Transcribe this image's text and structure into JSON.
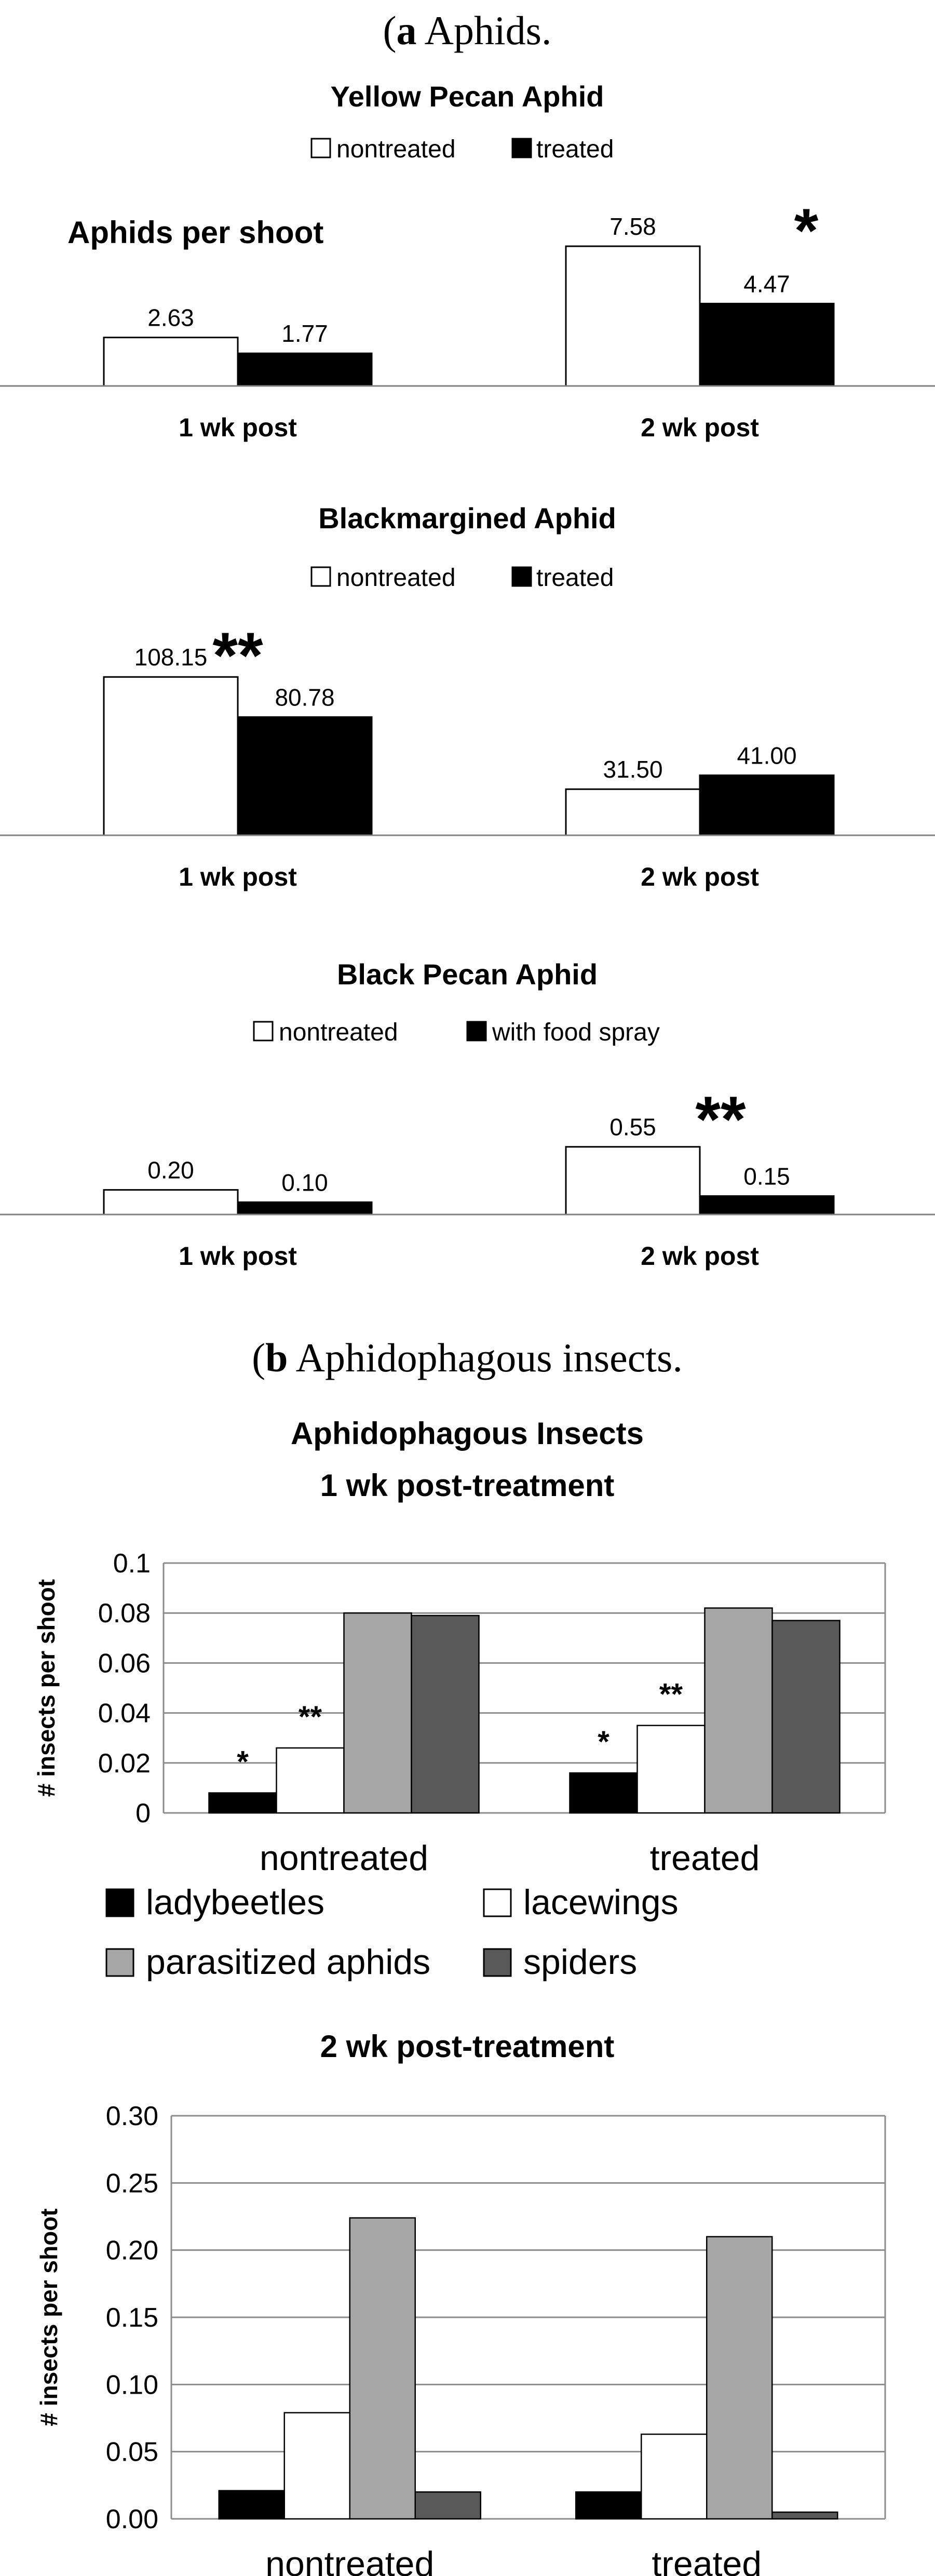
{
  "section_a": {
    "letter": "a",
    "text": " Aphids."
  },
  "section_b": {
    "letter": "b",
    "text": " Aphidophagous insects."
  },
  "chart_data": [
    {
      "id": "yellow",
      "type": "bar",
      "title": "Yellow Pecan Aphid",
      "ylabel": "Aphids per shoot",
      "categories": [
        "1 wk post",
        "2 wk post"
      ],
      "series": [
        {
          "name": "nontreated",
          "values": [
            2.63,
            7.58
          ],
          "labels": [
            "2.63",
            "7.58"
          ],
          "color": "#ffffff"
        },
        {
          "name": "treated",
          "values": [
            1.77,
            4.47
          ],
          "labels": [
            "1.77",
            "4.47"
          ],
          "color": "#000000"
        }
      ],
      "ylim": [
        0,
        9.3
      ],
      "annotations": [
        {
          "text": "*",
          "category": 1
        }
      ]
    },
    {
      "id": "blackmargined",
      "type": "bar",
      "title": "Blackmargined Aphid",
      "categories": [
        "1 wk post",
        "2 wk post"
      ],
      "series": [
        {
          "name": "nontreated",
          "values": [
            108.15,
            31.5
          ],
          "labels": [
            "108.15",
            "31.50"
          ],
          "color": "#ffffff"
        },
        {
          "name": "treated",
          "values": [
            80.78,
            41.0
          ],
          "labels": [
            "80.78",
            "41.00"
          ],
          "color": "#000000"
        }
      ],
      "ylim": [
        0,
        110
      ],
      "annotations": [
        {
          "text": "**",
          "category": 0
        }
      ]
    },
    {
      "id": "black",
      "type": "bar",
      "title": "Black Pecan Aphid",
      "categories": [
        "1 wk post",
        "2 wk post"
      ],
      "series": [
        {
          "name": "nontreated",
          "values": [
            0.2,
            0.55
          ],
          "labels": [
            "0.20",
            "0.55"
          ],
          "color": "#ffffff"
        },
        {
          "name": "with food spray",
          "values": [
            0.1,
            0.15
          ],
          "labels": [
            "0.10",
            "0.15"
          ],
          "color": "#000000"
        }
      ],
      "ylim": [
        0,
        0.57
      ],
      "annotations": [
        {
          "text": "**",
          "category": 1
        }
      ]
    },
    {
      "id": "pred1",
      "type": "bar",
      "title": "Aphidophagous Insects",
      "subtitle": "1 wk post-treatment",
      "ylabel": "# insects per shoot",
      "categories": [
        "nontreated",
        "treated"
      ],
      "yticks": [
        "0",
        "0.02",
        "0.04",
        "0.06",
        "0.08",
        "0.1"
      ],
      "ylim": [
        0,
        0.1
      ],
      "grid": true,
      "series": [
        {
          "name": "ladybeetles",
          "values": [
            0.008,
            0.016
          ],
          "color": "#000000"
        },
        {
          "name": "lacewings",
          "values": [
            0.026,
            0.035
          ],
          "color": "#ffffff"
        },
        {
          "name": "parasitized aphids",
          "values": [
            0.08,
            0.082
          ],
          "color": "#a6a6a6"
        },
        {
          "name": "spiders",
          "values": [
            0.079,
            0.077
          ],
          "color": "#595959"
        }
      ],
      "annotations": [
        {
          "text": "*",
          "category": 0,
          "series": 0
        },
        {
          "text": "**",
          "category": 0,
          "series": 1
        },
        {
          "text": "*",
          "category": 1,
          "series": 0
        },
        {
          "text": "**",
          "category": 1,
          "series": 1
        }
      ]
    },
    {
      "id": "pred2",
      "type": "bar",
      "title": "2 wk post-treatment",
      "ylabel": "# insects per shoot",
      "categories": [
        "nontreated",
        "treated"
      ],
      "yticks": [
        "0.00",
        "0.05",
        "0.10",
        "0.15",
        "0.20",
        "0.25",
        "0.30"
      ],
      "ylim": [
        0,
        0.3
      ],
      "grid": true,
      "series": [
        {
          "name": "ladybeetles",
          "values": [
            0.021,
            0.02
          ],
          "color": "#000000"
        },
        {
          "name": "lacewings",
          "values": [
            0.079,
            0.063
          ],
          "color": "#ffffff"
        },
        {
          "name": "parasitized aphids",
          "values": [
            0.224,
            0.21
          ],
          "color": "#a6a6a6"
        },
        {
          "name": "spiders",
          "values": [
            0.02,
            0.005
          ],
          "color": "#595959"
        }
      ]
    }
  ]
}
